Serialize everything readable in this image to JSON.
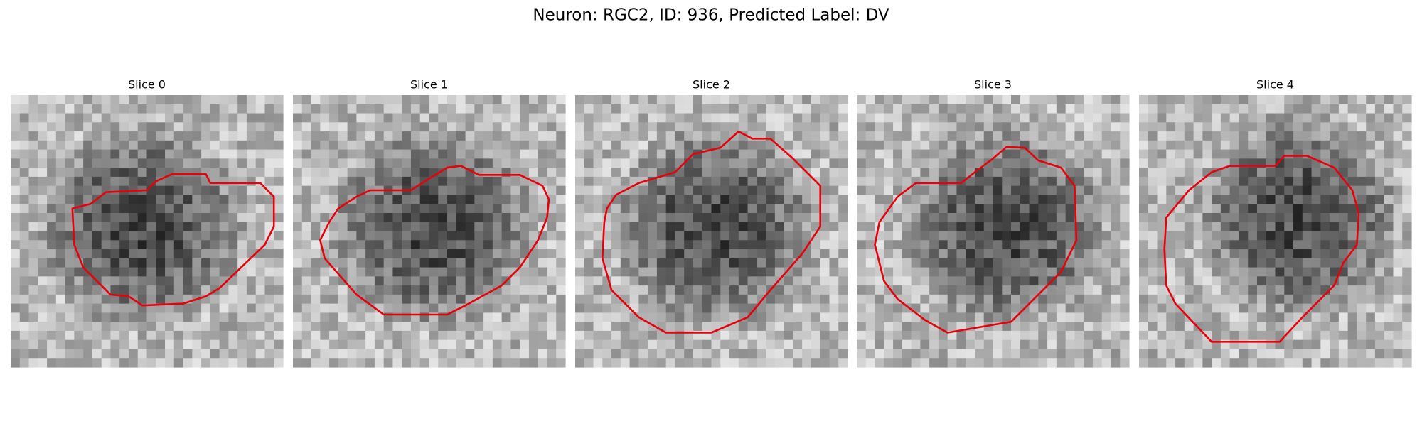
{
  "title": "Neuron: RGC2, ID: 936, Predicted Label: DV",
  "panels": [
    {
      "title": "Slice 0"
    },
    {
      "title": "Slice 1"
    },
    {
      "title": "Slice 2"
    },
    {
      "title": "Slice 3"
    },
    {
      "title": "Slice 4"
    }
  ]
}
